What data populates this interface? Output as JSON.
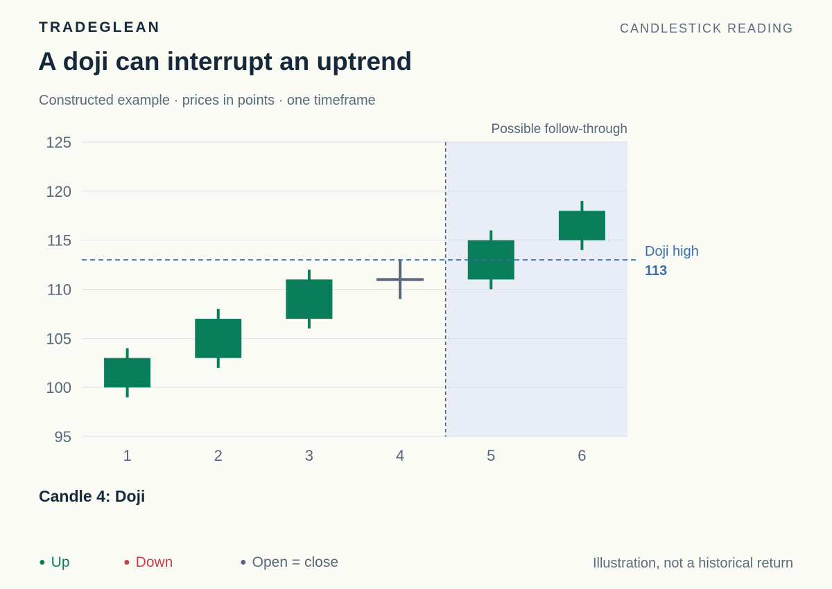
{
  "header": {
    "brand": "TRADEGLEAN",
    "section": "CANDLESTICK READING",
    "title": "A doji can interrupt an uptrend",
    "subtitle": "Constructed example · prices in points · one timeframe"
  },
  "chart_data": {
    "type": "candlestick",
    "categories": [
      "1",
      "2",
      "3",
      "4",
      "5",
      "6"
    ],
    "candles": [
      {
        "x": "1",
        "open": 100,
        "high": 104,
        "low": 99,
        "close": 103,
        "kind": "up"
      },
      {
        "x": "2",
        "open": 103,
        "high": 108,
        "low": 102,
        "close": 107,
        "kind": "up"
      },
      {
        "x": "3",
        "open": 107,
        "high": 112,
        "low": 106,
        "close": 111,
        "kind": "up"
      },
      {
        "x": "4",
        "open": 111,
        "high": 113,
        "low": 109,
        "close": 111,
        "kind": "doji"
      },
      {
        "x": "5",
        "open": 111,
        "high": 116,
        "low": 110,
        "close": 115,
        "kind": "up"
      },
      {
        "x": "6",
        "open": 115,
        "high": 119,
        "low": 114,
        "close": 118,
        "kind": "up"
      }
    ],
    "ylim": [
      95,
      125
    ],
    "yticks": [
      95,
      100,
      105,
      110,
      115,
      120,
      125
    ],
    "grid": true,
    "reference_line": {
      "label": "Doji high",
      "value": 113,
      "value_label": "113"
    },
    "shaded_region": {
      "label": "Possible follow-through",
      "from": "5",
      "to": "6"
    },
    "colors": {
      "up": "#0a7d5a",
      "down": "#cc3f47",
      "doji": "#56677a",
      "reference": "#3a6fa5",
      "shade": "#e9eef6"
    }
  },
  "caption": "Candle 4: Doji",
  "legend": {
    "up": "Up",
    "down": "Down",
    "doji": "Open = close"
  },
  "note": "Illustration, not a historical return"
}
